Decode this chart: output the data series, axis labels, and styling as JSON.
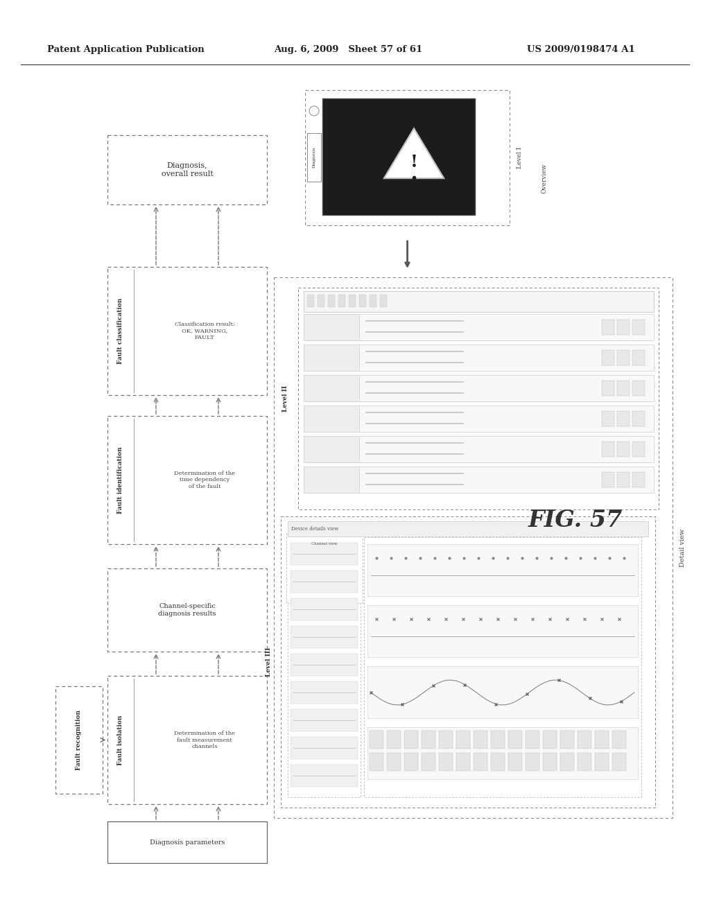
{
  "header_left": "Patent Application Publication",
  "header_mid": "Aug. 6, 2009   Sheet 57 of 61",
  "header_right": "US 2009/0198474 A1",
  "fig_label": "FIG. 57",
  "background_color": "#ffffff"
}
